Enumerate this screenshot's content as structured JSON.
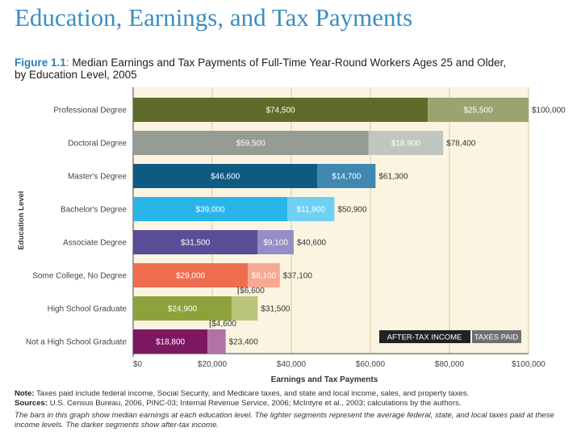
{
  "page_title": "Education, Earnings, and Tax Payments",
  "figure": {
    "label": "Figure 1.1",
    "caption_line1": "Median Earnings and Tax Payments of Full-Time Year-Round Workers Ages 25 and Older,",
    "caption_line2": "by Education Level, 2005"
  },
  "colors": {
    "background_band": "#fbf4e1",
    "grid_line": "#d9c9a0",
    "axis_line": "#444444",
    "label_text": "#444444",
    "legend_box": "#222222"
  },
  "chart_data": {
    "type": "bar",
    "orientation": "horizontal",
    "stacked": true,
    "ylabel": "Education Level",
    "xlabel": "Earnings and Tax Payments",
    "xlim": [
      0,
      100000
    ],
    "xticks": [
      0,
      20000,
      40000,
      60000,
      80000,
      100000
    ],
    "xtick_labels": [
      "$0",
      "$20,000",
      "$40,000",
      "$60,000",
      "$80,000",
      "$100,000"
    ],
    "categories": [
      "Professional Degree",
      "Doctoral Degree",
      "Master's Degree",
      "Bachelor's Degree",
      "Associate Degree",
      "Some College, No Degree",
      "High School Graduate",
      "Not a High School Graduate"
    ],
    "series": [
      {
        "name": "AFTER-TAX INCOME",
        "values": [
          74500,
          59500,
          46600,
          39000,
          31500,
          29000,
          24900,
          18800
        ],
        "labels": [
          "$74,500",
          "$59,500",
          "$46,600",
          "$39,000",
          "$31,500",
          "$29,000",
          "$24,900",
          "$18,800"
        ]
      },
      {
        "name": "TAXES PAID",
        "values": [
          25500,
          18900,
          14700,
          11900,
          9100,
          8100,
          6600,
          4600
        ],
        "labels": [
          "$25,500",
          "$18,900",
          "$14,700",
          "$11,900",
          "$9,100",
          "$8,100",
          "$6,600",
          "$4,600"
        ]
      }
    ],
    "totals": [
      100000,
      78400,
      61300,
      50900,
      40600,
      37100,
      31500,
      23400
    ],
    "total_labels": [
      "$100,000",
      "$78,400",
      "$61,300",
      "$50,900",
      "$40,600",
      "$37,100",
      "$31,500",
      "$23,400"
    ],
    "legend": [
      "AFTER-TAX INCOME",
      "TAXES PAID"
    ],
    "legend_position": "bottom-right",
    "bar_colors": [
      {
        "after_tax": "#5f6b2a",
        "taxes": "#9ba471"
      },
      {
        "after_tax": "#959c93",
        "taxes": "#c0c6bf"
      },
      {
        "after_tax": "#0f5a82",
        "taxes": "#3e88b2"
      },
      {
        "after_tax": "#2ab5e9",
        "taxes": "#6fd0f3"
      },
      {
        "after_tax": "#5a4d98",
        "taxes": "#958ec4"
      },
      {
        "after_tax": "#ee6d4f",
        "taxes": "#f5a892"
      },
      {
        "after_tax": "#8ea23c",
        "taxes": "#b9c57a"
      },
      {
        "after_tax": "#7e1762",
        "taxes": "#b272a4"
      }
    ]
  },
  "notes": {
    "note_label": "Note:",
    "note_text": "Taxes paid include federal income, Social Security, and Medicare taxes, and state and local income, sales, and property taxes.",
    "sources_label": "Sources:",
    "sources_text": "U.S. Census Bureau, 2006, PINC-03; Internal Revenue Service, 2006; McIntyre et al., 2003; calculations by the authors.",
    "description": "The bars in this graph show median earnings at each education level. The lighter segments represent the average federal, state, and local taxes paid at these income levels. The darker segments show after-tax income."
  }
}
